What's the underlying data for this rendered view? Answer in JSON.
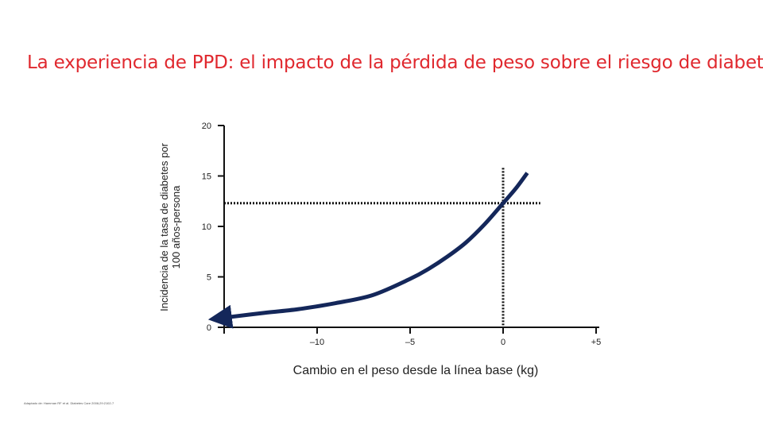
{
  "slide": {
    "title": "La experiencia de PPD: el impacto de la pérdida de peso sobre el riesgo de diabetes",
    "source": "Adaptado de: Hamman RF et al. Diabetes Care 2006;29:2102-7"
  },
  "chart_data": {
    "type": "line",
    "title": "",
    "xlabel": "Cambio en el peso desde la línea base (kg)",
    "ylabel_lines": [
      "Incidencia de la tasa de diabetes por",
      "100 años-persona"
    ],
    "xlim": [
      -15,
      5
    ],
    "ylim": [
      0,
      20
    ],
    "x_ticks": [
      -10,
      -5,
      0,
      5
    ],
    "x_tick_labels": [
      "–10",
      "–5",
      "0",
      "+5"
    ],
    "y_ticks": [
      0,
      5,
      10,
      15,
      20
    ],
    "y_tick_labels": [
      "0",
      "5",
      "10",
      "15",
      "20"
    ],
    "grid": false,
    "series": [
      {
        "color": "#14275a",
        "arrow_at_start": true,
        "x": [
          -14.8,
          -13,
          -11,
          -9,
          -7,
          -5,
          -4,
          -3,
          -2,
          -1,
          0,
          0.7,
          1.3
        ],
        "y": [
          1.0,
          1.4,
          1.8,
          2.4,
          3.2,
          4.8,
          5.8,
          7.0,
          8.4,
          10.2,
          12.3,
          13.8,
          15.3
        ]
      }
    ],
    "reference_lines": [
      {
        "orientation": "vertical",
        "x": 0,
        "y_range": [
          0,
          15.8
        ],
        "style": "dotted"
      },
      {
        "orientation": "horizontal",
        "y": 12.3,
        "x_range": [
          -15,
          2
        ],
        "style": "dotted"
      }
    ]
  }
}
